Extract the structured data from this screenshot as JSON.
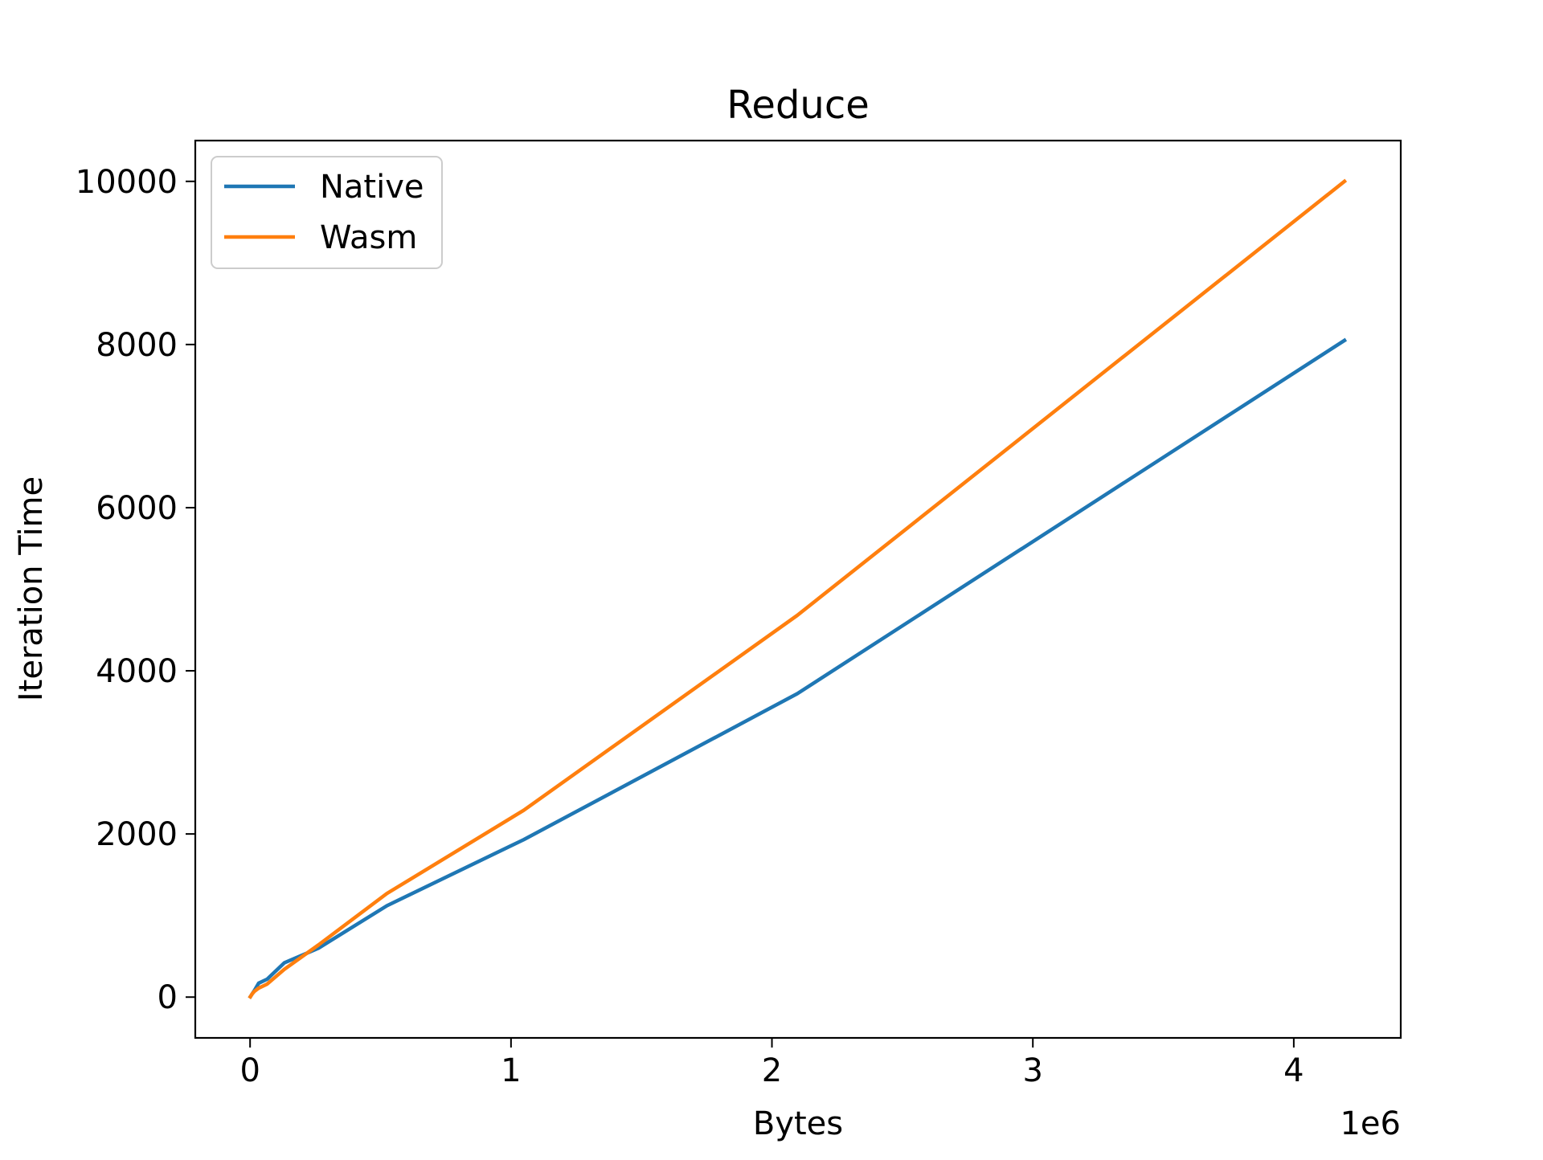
{
  "chart_data": {
    "type": "line",
    "title": "Reduce",
    "xlabel": "Bytes",
    "ylabel": "Iteration Time",
    "x_offset_label": "1e6",
    "x_scale": 1000000,
    "xlim": [
      -210000,
      4410000
    ],
    "ylim": [
      -500,
      10500
    ],
    "x_ticks": [
      0,
      1000000,
      2000000,
      3000000,
      4000000
    ],
    "x_tick_labels": [
      "0",
      "1",
      "2",
      "3",
      "4"
    ],
    "y_ticks": [
      0,
      2000,
      4000,
      6000,
      8000,
      10000
    ],
    "y_tick_labels": [
      "0",
      "2000",
      "4000",
      "6000",
      "8000",
      "10000"
    ],
    "grid": false,
    "legend_position": "upper left",
    "x": [
      1024,
      2048,
      4096,
      8192,
      16384,
      32768,
      65536,
      131072,
      262144,
      524288,
      1048576,
      2097152,
      4194304
    ],
    "series": [
      {
        "name": "Native",
        "color": "#1f77b4",
        "values": [
          5,
          10,
          20,
          40,
          80,
          170,
          220,
          420,
          600,
          1120,
          1930,
          3720,
          8050
        ]
      },
      {
        "name": "Wasm",
        "color": "#ff7f0e",
        "values": [
          5,
          10,
          20,
          40,
          70,
          110,
          160,
          340,
          640,
          1270,
          2290,
          4680,
          10000
        ]
      }
    ]
  }
}
